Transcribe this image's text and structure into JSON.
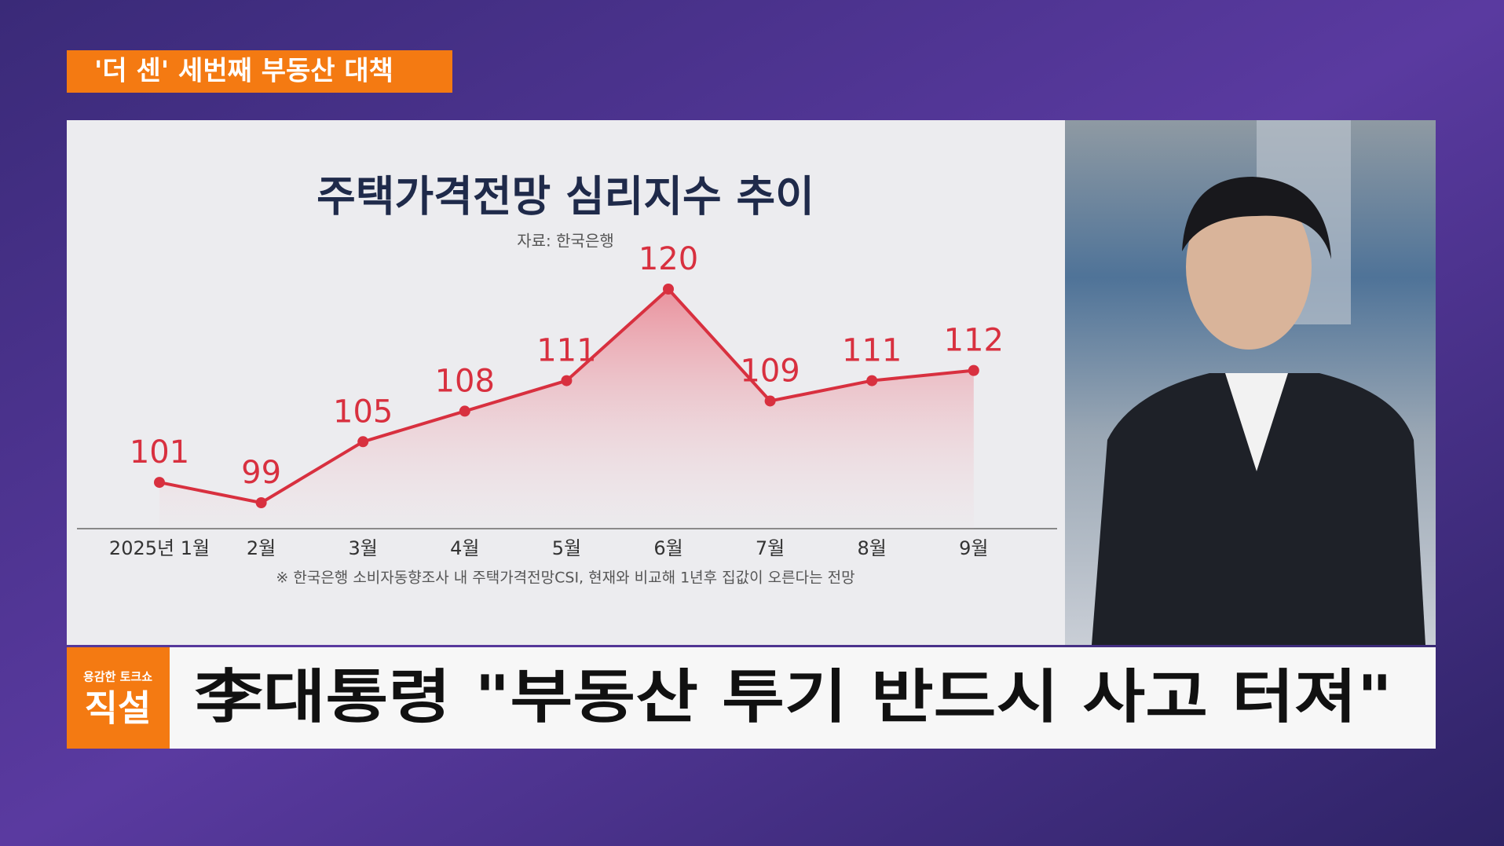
{
  "tag": "'더 센' 세번째 부동산 대책",
  "chart_data": {
    "type": "line",
    "title": "주택가격전망 심리지수 추이",
    "subtitle": "자료: 한국은행",
    "categories": [
      "2025년 1월",
      "2월",
      "3월",
      "4월",
      "5월",
      "6월",
      "7월",
      "8월",
      "9월"
    ],
    "values": [
      101,
      99,
      105,
      108,
      111,
      120,
      109,
      111,
      112
    ],
    "color": "#d8303f",
    "note": "※ 한국은행 소비자동향조사 내 주택가격전망CSI, 현재와 비교해 1년후 집값이 오른다는 전망"
  },
  "logo": {
    "small": "용감한 토크쇼",
    "big": "직설"
  },
  "headline": "李대통령 \"부동산 투기 반드시 사고 터져\""
}
